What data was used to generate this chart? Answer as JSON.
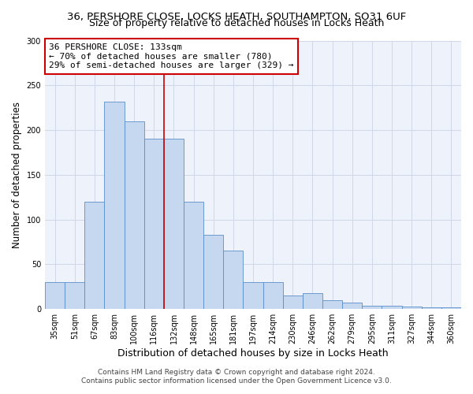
{
  "title_line1": "36, PERSHORE CLOSE, LOCKS HEATH, SOUTHAMPTON, SO31 6UF",
  "title_line2": "Size of property relative to detached houses in Locks Heath",
  "xlabel": "Distribution of detached houses by size in Locks Heath",
  "ylabel": "Number of detached properties",
  "categories": [
    "35sqm",
    "51sqm",
    "67sqm",
    "83sqm",
    "100sqm",
    "116sqm",
    "132sqm",
    "148sqm",
    "165sqm",
    "181sqm",
    "197sqm",
    "214sqm",
    "230sqm",
    "246sqm",
    "262sqm",
    "279sqm",
    "295sqm",
    "311sqm",
    "327sqm",
    "344sqm",
    "360sqm"
  ],
  "values": [
    30,
    30,
    120,
    232,
    210,
    190,
    190,
    120,
    83,
    65,
    30,
    30,
    15,
    18,
    10,
    7,
    4,
    4,
    3,
    2,
    2
  ],
  "bar_color": "#c5d8f0",
  "bar_edge_color": "#5b8dc8",
  "vline_x_index": 6,
  "vline_color": "#cc0000",
  "annotation_text": "36 PERSHORE CLOSE: 133sqm\n← 70% of detached houses are smaller (780)\n29% of semi-detached houses are larger (329) →",
  "annotation_box_color": "#ffffff",
  "annotation_box_edge_color": "#cc0000",
  "ylim": [
    0,
    300
  ],
  "yticks": [
    0,
    50,
    100,
    150,
    200,
    250,
    300
  ],
  "grid_color": "#d0d8e8",
  "background_color": "#eef2fb",
  "footer_line1": "Contains HM Land Registry data © Crown copyright and database right 2024.",
  "footer_line2": "Contains public sector information licensed under the Open Government Licence v3.0.",
  "title_fontsize": 9.5,
  "subtitle_fontsize": 9,
  "xlabel_fontsize": 9,
  "ylabel_fontsize": 8.5,
  "tick_fontsize": 7,
  "annotation_fontsize": 8,
  "footer_fontsize": 6.5
}
